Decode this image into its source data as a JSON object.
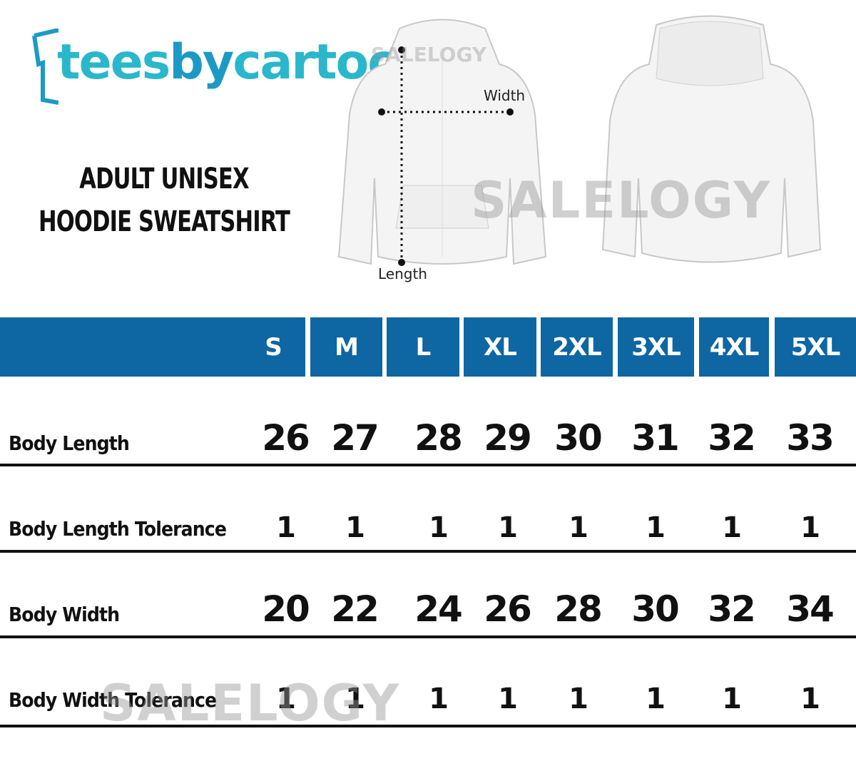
{
  "brand": {
    "logo_text_a": "tees",
    "logo_text_b": "by",
    "logo_text_c": "cartoon",
    "primary_color": "#2ab7cc",
    "accent_color": "#1c9ac6"
  },
  "title": {
    "line1": "ADULT UNISEX",
    "line2": "HOODIE SWEATSHIRT"
  },
  "diagram": {
    "width_label": "Width",
    "length_label": "Length",
    "watermark": "SALELOGY"
  },
  "table": {
    "header_color": "#0e66a3",
    "sizes": [
      "S",
      "M",
      "L",
      "XL",
      "2XL",
      "3XL",
      "4XL",
      "5XL"
    ],
    "rows": [
      {
        "label": "Body Length",
        "values": [
          "26",
          "27",
          "28",
          "29",
          "30",
          "31",
          "32",
          "33"
        ]
      },
      {
        "label": "Body Length Tolerance",
        "values": [
          "1",
          "1",
          "1",
          "1",
          "1",
          "1",
          "1",
          "1"
        ]
      },
      {
        "label": "Body Width",
        "values": [
          "20",
          "22",
          "24",
          "26",
          "28",
          "30",
          "32",
          "34"
        ]
      },
      {
        "label": "Body Width Tolerance",
        "values": [
          "1",
          "1",
          "1",
          "1",
          "1",
          "1",
          "1",
          "1"
        ]
      }
    ]
  }
}
